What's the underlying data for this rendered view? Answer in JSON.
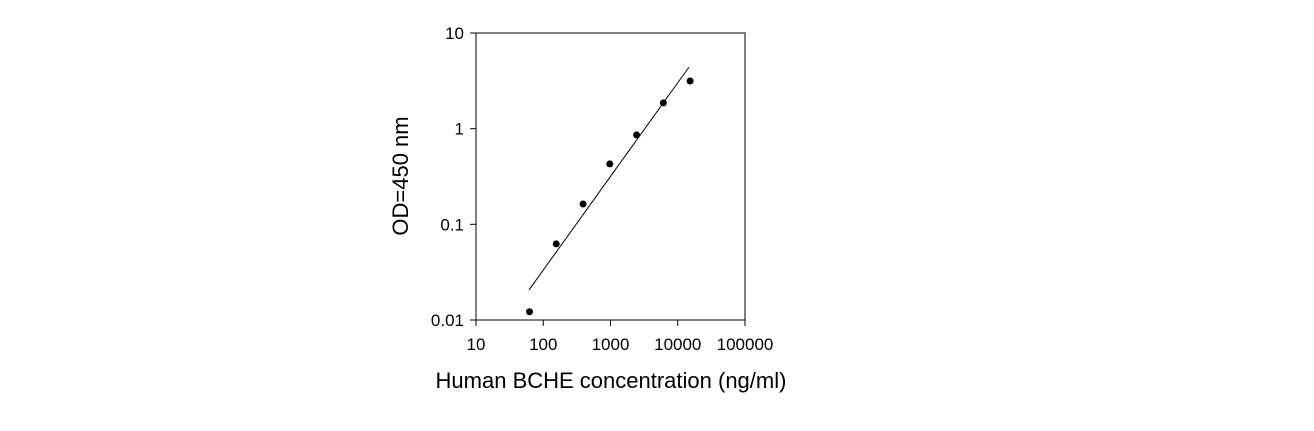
{
  "chart_data": {
    "type": "scatter",
    "x_label": "Human BCHE concentration (ng/ml)",
    "y_label": "OD=450 nm",
    "x": [
      62.5,
      156,
      391,
      977,
      2441,
      6104,
      15259
    ],
    "values": [
      0.0122,
      0.0624,
      0.163,
      0.428,
      0.86,
      1.86,
      3.15
    ],
    "color": "#000000",
    "fit": {
      "x": [
        61.4,
        14690
      ],
      "y": [
        0.0206,
        4.4
      ]
    },
    "xlim": [
      10,
      100000
    ],
    "ylim": [
      0.01,
      10
    ],
    "xticks": [
      10,
      100,
      1000,
      10000,
      100000
    ],
    "yticks": [
      0.01,
      0.1,
      1,
      10
    ],
    "xscale": "log",
    "yscale": "log"
  }
}
